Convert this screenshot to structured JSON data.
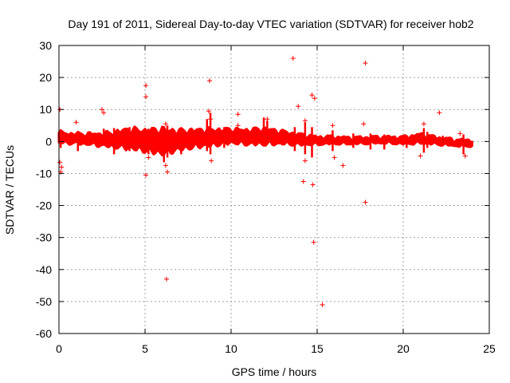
{
  "chart_data": {
    "type": "scatter",
    "title": "Day 191 of 2011, Sidereal Day-to-day VTEC variation (SDTVAR) for receiver hob2",
    "xlabel": "GPS time / hours",
    "ylabel": "SDTVAR / TECUs",
    "xlim": [
      0,
      25
    ],
    "ylim": [
      -60,
      30
    ],
    "xticks": [
      0,
      5,
      10,
      15,
      20,
      25
    ],
    "yticks": [
      -60,
      -50,
      -40,
      -30,
      -20,
      -10,
      0,
      10,
      20,
      30
    ],
    "grid": true,
    "marker": "+",
    "color": "#ff0000",
    "band": {
      "x_start": 0,
      "x_end": 24,
      "center": [
        [
          0,
          1.2
        ],
        [
          1,
          0.9
        ],
        [
          2,
          0.7
        ],
        [
          3,
          0.5
        ],
        [
          4,
          0.9
        ],
        [
          5,
          0.3
        ],
        [
          6,
          0.0
        ],
        [
          7,
          0.4
        ],
        [
          8,
          1.0
        ],
        [
          9,
          1.3
        ],
        [
          10,
          1.7
        ],
        [
          11,
          1.4
        ],
        [
          12,
          1.6
        ],
        [
          13,
          1.2
        ],
        [
          14,
          0.6
        ],
        [
          15,
          0.3
        ],
        [
          16,
          0.4
        ],
        [
          17,
          0.2
        ],
        [
          18,
          0.4
        ],
        [
          19,
          0.5
        ],
        [
          20,
          0.3
        ],
        [
          21,
          0.9
        ],
        [
          22,
          0.2
        ],
        [
          23,
          -0.4
        ],
        [
          24,
          -0.5
        ]
      ],
      "half_width": [
        [
          0,
          1.5
        ],
        [
          1,
          1.4
        ],
        [
          2,
          1.6
        ],
        [
          3,
          2.0
        ],
        [
          4,
          2.8
        ],
        [
          5,
          3.0
        ],
        [
          6,
          3.6
        ],
        [
          7,
          2.8
        ],
        [
          8,
          2.5
        ],
        [
          9,
          2.3
        ],
        [
          10,
          2.0
        ],
        [
          11,
          2.1
        ],
        [
          12,
          2.3
        ],
        [
          13,
          1.8
        ],
        [
          14,
          1.5
        ],
        [
          15,
          1.1
        ],
        [
          16,
          1.0
        ],
        [
          17,
          0.9
        ],
        [
          18,
          0.9
        ],
        [
          19,
          0.9
        ],
        [
          20,
          1.0
        ],
        [
          21,
          1.3
        ],
        [
          22,
          1.0
        ],
        [
          23,
          0.9
        ],
        [
          24,
          0.9
        ]
      ]
    },
    "outliers": [
      {
        "x": 0.05,
        "y": 10.0
      },
      {
        "x": 0.05,
        "y": -6.5
      },
      {
        "x": 0.1,
        "y": -9.5
      },
      {
        "x": 0.15,
        "y": -8.0
      },
      {
        "x": 1.0,
        "y": 6.0
      },
      {
        "x": 2.5,
        "y": 10.0
      },
      {
        "x": 2.6,
        "y": 9.0
      },
      {
        "x": 5.05,
        "y": 17.5
      },
      {
        "x": 5.05,
        "y": 14.0
      },
      {
        "x": 5.05,
        "y": -10.5
      },
      {
        "x": 5.2,
        "y": -5.0
      },
      {
        "x": 6.2,
        "y": 5.5
      },
      {
        "x": 6.2,
        "y": -7.5
      },
      {
        "x": 6.25,
        "y": -43.0
      },
      {
        "x": 6.3,
        "y": -9.5
      },
      {
        "x": 8.7,
        "y": 9.5
      },
      {
        "x": 8.75,
        "y": 19.0
      },
      {
        "x": 8.8,
        "y": 7.0
      },
      {
        "x": 8.85,
        "y": -6.0
      },
      {
        "x": 10.4,
        "y": 8.5
      },
      {
        "x": 10.4,
        "y": 5.0
      },
      {
        "x": 12.1,
        "y": 7.0
      },
      {
        "x": 13.6,
        "y": 26.0
      },
      {
        "x": 13.9,
        "y": 11.0
      },
      {
        "x": 14.2,
        "y": -12.5
      },
      {
        "x": 14.3,
        "y": 6.5
      },
      {
        "x": 14.3,
        "y": -6.0
      },
      {
        "x": 14.7,
        "y": 14.5
      },
      {
        "x": 14.75,
        "y": -13.5
      },
      {
        "x": 14.8,
        "y": -31.5
      },
      {
        "x": 14.85,
        "y": 13.5
      },
      {
        "x": 15.3,
        "y": -51.0
      },
      {
        "x": 15.9,
        "y": 5.0
      },
      {
        "x": 16.0,
        "y": -5.0
      },
      {
        "x": 16.5,
        "y": -7.5
      },
      {
        "x": 17.7,
        "y": 5.5
      },
      {
        "x": 17.8,
        "y": 24.5
      },
      {
        "x": 17.8,
        "y": -19.0
      },
      {
        "x": 21.2,
        "y": 5.5
      },
      {
        "x": 21.0,
        "y": -4.5
      },
      {
        "x": 22.1,
        "y": 9.0
      },
      {
        "x": 23.3,
        "y": 2.5
      },
      {
        "x": 23.6,
        "y": -4.5
      }
    ]
  }
}
